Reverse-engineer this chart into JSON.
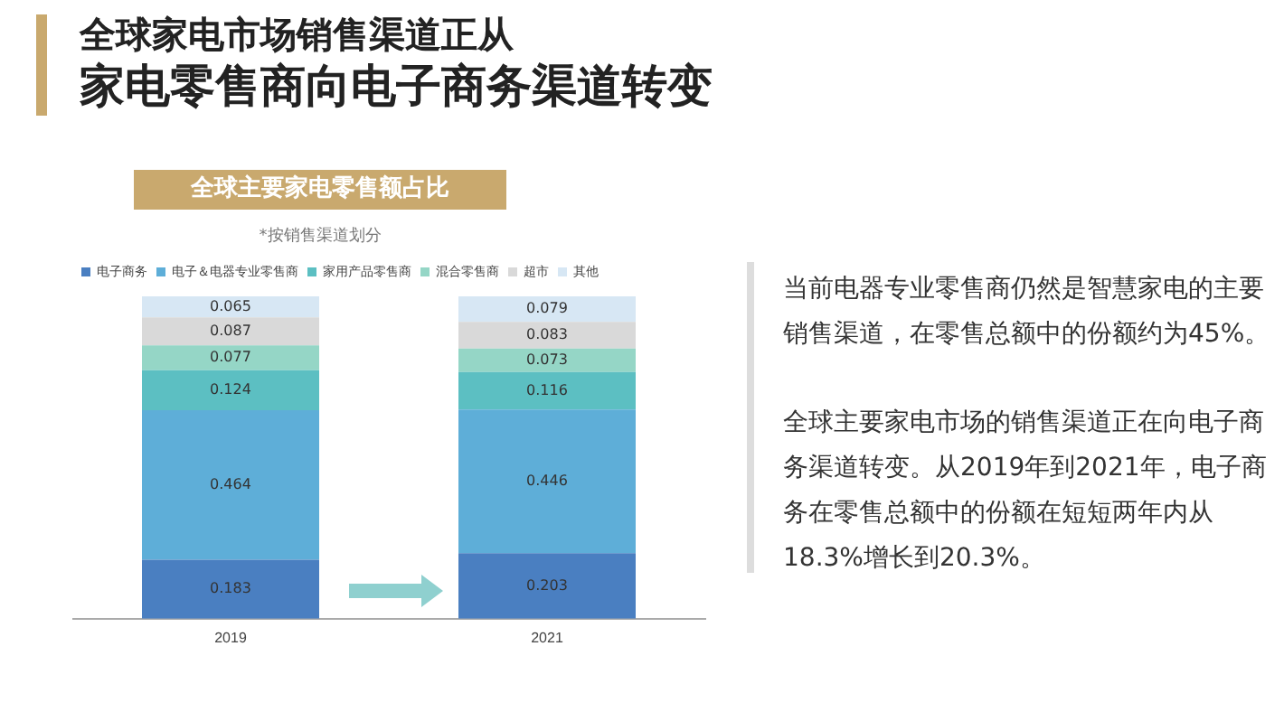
{
  "chart_data": {
    "type": "bar",
    "title": "全球家电市场销售渠道正从",
    "subtitle": "全球主要家电零售额占比",
    "annotations": [
      "家电零售商向电子商务渠道转变",
      "*按销售渠道划分",
      "当前电器专业零售商仍然是智慧家电的主要销售渠道，在零售总额中的份额约为45%。",
      "全球主要家电市场的销售渠道正在向电子商务渠道转变。从2019年到2021年，电子商务在零售总额中的份额在短短两年内从18.3%增长到20.3%。"
    ],
    "categories": [
      "2019",
      "2021"
    ],
    "stacked": true,
    "data_labels": true,
    "legend": "top",
    "grid": false,
    "series": [
      {
        "name": "电子商务",
        "color": "#4a7fc1",
        "values": [
          0.183,
          0.203
        ]
      },
      {
        "name": "电子＆电器专业零售商",
        "color": "#5eaed8",
        "values": [
          0.464,
          0.446
        ]
      },
      {
        "name": "家用产品零售商",
        "color": "#5cbfc2",
        "values": [
          0.124,
          0.116
        ]
      },
      {
        "name": "混合零售商",
        "color": "#95d6c6",
        "values": [
          0.077,
          0.073
        ]
      },
      {
        "name": "超市",
        "color": "#d9d9d9",
        "values": [
          0.087,
          0.083
        ]
      },
      {
        "name": "其他",
        "color": "#d7e7f4",
        "values": [
          0.065,
          0.079
        ]
      }
    ]
  }
}
